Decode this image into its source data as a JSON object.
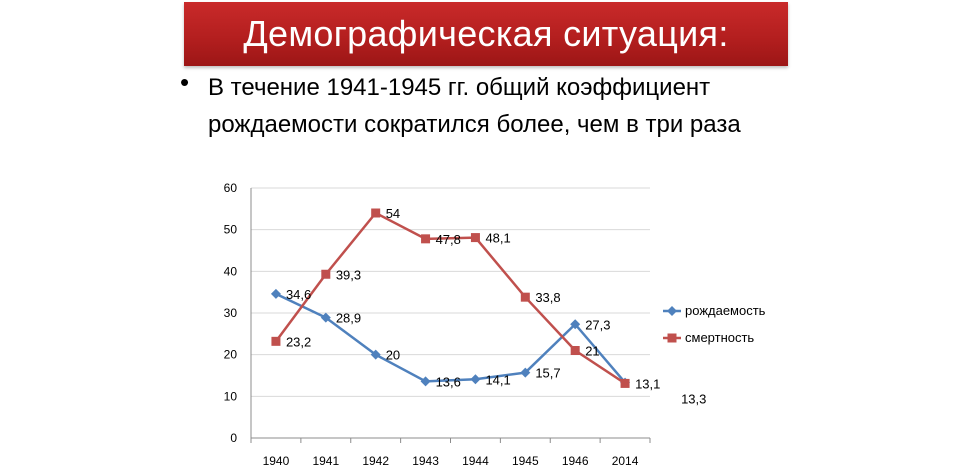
{
  "header": {
    "title": "Демографическая ситуация:"
  },
  "bullet": {
    "symbol": "•",
    "text": "В течение  1941-1945 гг. общий  коэффициент рождаемости  сократился более, чем в три раза"
  },
  "colors": {
    "birth": "#4f81bd",
    "death": "#c0504d",
    "title_bg": "#b41f1f",
    "grid": "#d9d9d9"
  },
  "chart_data": {
    "type": "line",
    "categories": [
      "1940",
      "1941",
      "1942",
      "1943",
      "1944",
      "1945",
      "1946",
      "2014"
    ],
    "ylim": [
      0,
      60
    ],
    "yticks": [
      "0",
      "10",
      "20",
      "30",
      "40",
      "50",
      "60"
    ],
    "grid": true,
    "legend_position": "right",
    "series": [
      {
        "name": "рождаемость",
        "marker": "diamond",
        "values": [
          34.6,
          28.9,
          20,
          13.6,
          14.1,
          15.7,
          27.3,
          13.3
        ],
        "labels": [
          "34,6",
          "28,9",
          "20",
          "13,6",
          "14,1",
          "15,7",
          "27,3",
          "13,3"
        ]
      },
      {
        "name": "смертность",
        "marker": "square",
        "values": [
          23.2,
          39.3,
          54,
          47.8,
          48.1,
          33.8,
          21,
          13.1
        ],
        "labels": [
          "23,2",
          "39,3",
          "54",
          "47,8",
          "48,1",
          "33,8",
          "21",
          "13,1"
        ]
      }
    ]
  }
}
